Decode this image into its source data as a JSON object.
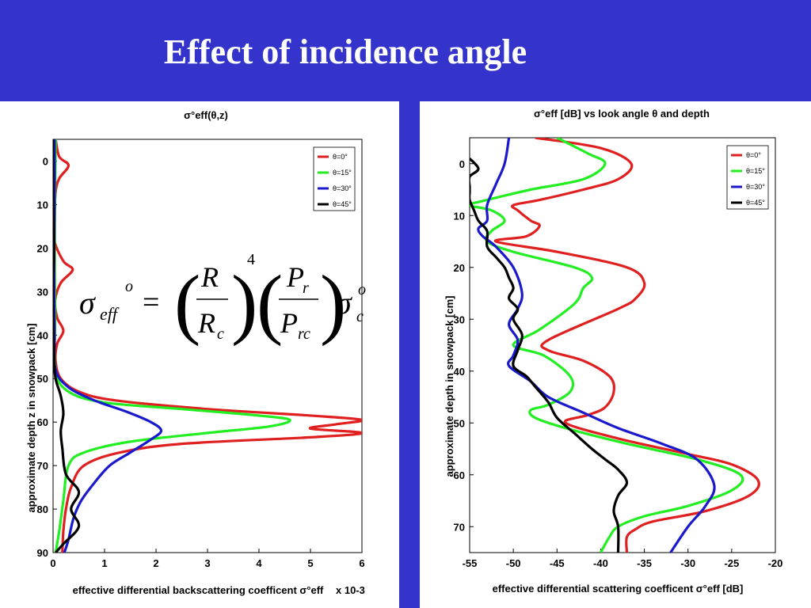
{
  "slide": {
    "title": "Effect of incidence angle"
  },
  "legend_labels": [
    "θ=0°",
    "θ=15°",
    "θ=30°",
    "θ=45°"
  ],
  "colors": {
    "background": "#3434cc",
    "panel": "#ffffff",
    "series": [
      "#e02020",
      "#22ee22",
      "#1a1acc",
      "#000000"
    ]
  },
  "formula": {
    "lhs": "σ",
    "lhs_sub": "eff",
    "lhs_sup": "o",
    "R": "R",
    "Rc": "R",
    "Rc_sub": "c",
    "exp": "4",
    "P": "P",
    "P_sub": "r",
    "Prc": "P",
    "Prc_sub": "rc",
    "rhs": "σ",
    "rhs_sub": "c",
    "rhs_sup": "o"
  },
  "chart_data": [
    {
      "type": "line",
      "title": "σ°eff(θ,z)",
      "xlabel": "effective differential backscattering coefficent σ°eff",
      "x_multiplier": "x 10-3",
      "ylabel": "approximate depth z in snowpack [cm]",
      "xlim": [
        0,
        6
      ],
      "ylim": [
        -5,
        90
      ],
      "y_inverted": true,
      "xticks": [
        0,
        1,
        2,
        3,
        4,
        5,
        6
      ],
      "yticks": [
        0,
        10,
        20,
        30,
        40,
        50,
        60,
        70,
        80,
        90
      ],
      "legend": "top-right",
      "series": [
        {
          "name": "θ=0°",
          "points": [
            [
              0.05,
              -5
            ],
            [
              0.12,
              -1
            ],
            [
              0.3,
              1
            ],
            [
              0.12,
              4
            ],
            [
              0.05,
              7
            ],
            [
              0.03,
              12
            ],
            [
              0.02,
              18
            ],
            [
              0.2,
              23
            ],
            [
              0.38,
              25
            ],
            [
              0.15,
              28
            ],
            [
              0.04,
              32
            ],
            [
              0.08,
              36
            ],
            [
              0.2,
              39
            ],
            [
              0.08,
              42
            ],
            [
              0.05,
              46
            ],
            [
              0.15,
              50
            ],
            [
              0.5,
              53
            ],
            [
              1.2,
              55
            ],
            [
              3.0,
              57
            ],
            [
              5.0,
              58.5
            ],
            [
              6.0,
              59.5
            ],
            [
              5.5,
              60.5
            ],
            [
              5.0,
              61.5
            ],
            [
              6.0,
              62.5
            ],
            [
              5.0,
              63.5
            ],
            [
              2.5,
              65
            ],
            [
              1.3,
              67
            ],
            [
              0.6,
              70
            ],
            [
              0.35,
              75
            ],
            [
              0.25,
              80
            ],
            [
              0.2,
              85
            ],
            [
              0.18,
              90
            ]
          ]
        },
        {
          "name": "θ=15°",
          "points": [
            [
              0.05,
              -5
            ],
            [
              0.04,
              5
            ],
            [
              0.03,
              20
            ],
            [
              0.04,
              35
            ],
            [
              0.05,
              48
            ],
            [
              0.3,
              53
            ],
            [
              1.0,
              55.5
            ],
            [
              2.5,
              57
            ],
            [
              4.0,
              58.5
            ],
            [
              4.6,
              59.5
            ],
            [
              4.2,
              61
            ],
            [
              3.0,
              62.5
            ],
            [
              1.5,
              64.5
            ],
            [
              0.6,
              67
            ],
            [
              0.3,
              70
            ],
            [
              0.2,
              78
            ],
            [
              0.12,
              85
            ],
            [
              0.05,
              90
            ]
          ]
        },
        {
          "name": "θ=30°",
          "points": [
            [
              0.03,
              -5
            ],
            [
              0.03,
              10
            ],
            [
              0.02,
              25
            ],
            [
              0.03,
              40
            ],
            [
              0.05,
              48
            ],
            [
              0.3,
              52
            ],
            [
              0.8,
              55
            ],
            [
              1.4,
              57.5
            ],
            [
              1.9,
              60
            ],
            [
              2.1,
              62
            ],
            [
              1.9,
              64
            ],
            [
              1.5,
              67
            ],
            [
              1.1,
              70
            ],
            [
              0.8,
              74
            ],
            [
              0.55,
              78
            ],
            [
              0.4,
              82
            ],
            [
              0.3,
              87
            ],
            [
              0.22,
              90
            ]
          ]
        },
        {
          "name": "θ=45°",
          "points": [
            [
              0.0,
              -5
            ],
            [
              0.0,
              5
            ],
            [
              0.02,
              20
            ],
            [
              0.0,
              30
            ],
            [
              0.02,
              45
            ],
            [
              0.05,
              50
            ],
            [
              0.15,
              54
            ],
            [
              0.2,
              58
            ],
            [
              0.15,
              62
            ],
            [
              0.18,
              66
            ],
            [
              0.25,
              72
            ],
            [
              0.5,
              76
            ],
            [
              0.35,
              80
            ],
            [
              0.5,
              84
            ],
            [
              0.2,
              88
            ],
            [
              0.05,
              90
            ]
          ]
        }
      ]
    },
    {
      "type": "line",
      "title": "σ°eff [dB] vs look angle θ and depth",
      "xlabel": "effective differential scattering coefficent σ°eff [dB]",
      "ylabel": "approximate depth in snowpack [cm]",
      "xlim": [
        -55,
        -20
      ],
      "ylim": [
        -5,
        75
      ],
      "y_inverted": true,
      "xticks": [
        -55,
        -50,
        -45,
        -40,
        -35,
        -30,
        -25,
        -20
      ],
      "yticks": [
        0,
        10,
        20,
        30,
        40,
        50,
        60,
        70
      ],
      "legend": "top-right",
      "series": [
        {
          "name": "θ=0°",
          "points": [
            [
              -47.5,
              -5
            ],
            [
              -40,
              -3
            ],
            [
              -36.5,
              0
            ],
            [
              -38,
              3
            ],
            [
              -42,
              5
            ],
            [
              -47,
              7
            ],
            [
              -50,
              8
            ],
            [
              -49.5,
              9
            ],
            [
              -48,
              11
            ],
            [
              -47,
              12
            ],
            [
              -48.5,
              14
            ],
            [
              -52,
              15
            ],
            [
              -45,
              17
            ],
            [
              -37,
              20
            ],
            [
              -35,
              23
            ],
            [
              -36,
              26
            ],
            [
              -38,
              28
            ],
            [
              -46,
              34
            ],
            [
              -46,
              36
            ],
            [
              -42,
              38
            ],
            [
              -39,
              41
            ],
            [
              -38.5,
              44
            ],
            [
              -39.5,
              47
            ],
            [
              -41.5,
              48.5
            ],
            [
              -44,
              50
            ],
            [
              -38,
              53
            ],
            [
              -30,
              56
            ],
            [
              -25,
              58
            ],
            [
              -22,
              61
            ],
            [
              -23,
              64
            ],
            [
              -28,
              67
            ],
            [
              -34,
              69
            ],
            [
              -36,
              70.5
            ],
            [
              -37,
              72
            ],
            [
              -37,
              75
            ]
          ]
        },
        {
          "name": "θ=15°",
          "points": [
            [
              -45,
              -5
            ],
            [
              -41.5,
              -2
            ],
            [
              -39.5,
              0
            ],
            [
              -42,
              3
            ],
            [
              -48,
              5
            ],
            [
              -53,
              7
            ],
            [
              -55,
              8
            ],
            [
              -52.5,
              9
            ],
            [
              -51,
              11
            ],
            [
              -52.5,
              13
            ],
            [
              -53,
              15
            ],
            [
              -50,
              17
            ],
            [
              -43,
              20
            ],
            [
              -41,
              22
            ],
            [
              -42,
              24
            ],
            [
              -43,
              27
            ],
            [
              -47,
              32
            ],
            [
              -50,
              35
            ],
            [
              -46.5,
              37
            ],
            [
              -43.5,
              41
            ],
            [
              -43.5,
              44
            ],
            [
              -46,
              46.5
            ],
            [
              -48,
              47.5
            ],
            [
              -47.5,
              49
            ],
            [
              -44,
              51
            ],
            [
              -37,
              54
            ],
            [
              -29,
              57
            ],
            [
              -24,
              60
            ],
            [
              -25,
              63
            ],
            [
              -30,
              66
            ],
            [
              -35,
              68
            ],
            [
              -38,
              70
            ],
            [
              -39,
              72
            ],
            [
              -40,
              75
            ]
          ]
        },
        {
          "name": "θ=30°",
          "points": [
            [
              -50.5,
              -5
            ],
            [
              -51,
              0
            ],
            [
              -52,
              4
            ],
            [
              -53,
              8
            ],
            [
              -53,
              11
            ],
            [
              -54,
              12.5
            ],
            [
              -53.5,
              14
            ],
            [
              -52,
              16
            ],
            [
              -50,
              20
            ],
            [
              -49,
              25
            ],
            [
              -49.5,
              28
            ],
            [
              -50.5,
              31
            ],
            [
              -49.5,
              34
            ],
            [
              -50,
              37
            ],
            [
              -50.5,
              39
            ],
            [
              -48,
              42
            ],
            [
              -46,
              45
            ],
            [
              -42,
              48
            ],
            [
              -38,
              51
            ],
            [
              -33,
              54
            ],
            [
              -29,
              57
            ],
            [
              -27,
              62
            ],
            [
              -28,
              66
            ],
            [
              -30,
              70
            ],
            [
              -32,
              75
            ]
          ]
        },
        {
          "name": "θ=45°",
          "points": [
            [
              -55,
              -1
            ],
            [
              -54,
              1
            ],
            [
              -55,
              2.5
            ],
            [
              -55,
              4.5
            ],
            [
              -55,
              5.5
            ],
            [
              -55,
              7
            ],
            [
              -54.5,
              9
            ],
            [
              -54,
              11
            ],
            [
              -53,
              13
            ],
            [
              -53,
              16
            ],
            [
              -52,
              18
            ],
            [
              -51,
              20
            ],
            [
              -50.5,
              22
            ],
            [
              -50,
              24
            ],
            [
              -50.5,
              26
            ],
            [
              -49.5,
              28
            ],
            [
              -50,
              30
            ],
            [
              -49,
              33
            ],
            [
              -49.5,
              36
            ],
            [
              -50,
              39
            ],
            [
              -48.5,
              41
            ],
            [
              -47.5,
              43
            ],
            [
              -46,
              46
            ],
            [
              -45,
              49
            ],
            [
              -43,
              52
            ],
            [
              -41,
              55
            ],
            [
              -39.5,
              57
            ],
            [
              -38,
              59
            ],
            [
              -37,
              61.5
            ],
            [
              -38,
              64
            ],
            [
              -38.5,
              67
            ],
            [
              -38,
              70
            ],
            [
              -38,
              75
            ]
          ]
        }
      ]
    }
  ]
}
